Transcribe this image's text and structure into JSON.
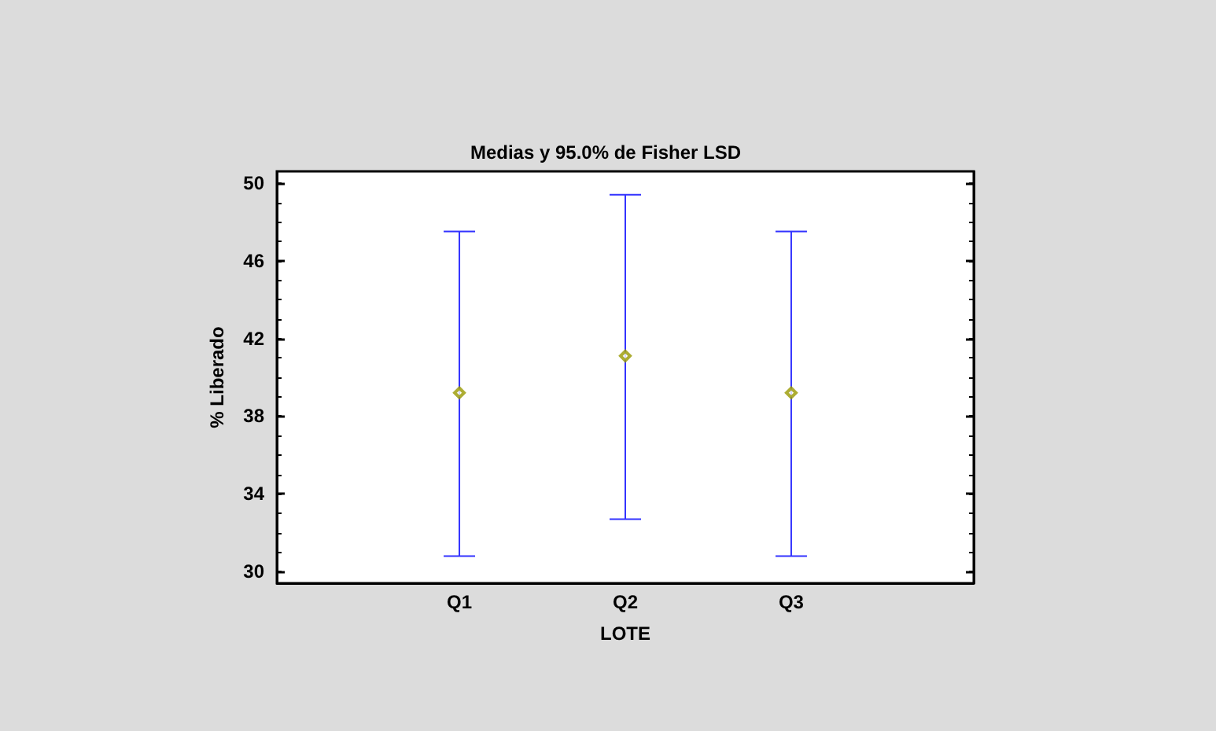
{
  "chart_data": {
    "type": "scatter",
    "title": "Medias y 95.0% de Fisher LSD",
    "xlabel": "LOTE",
    "ylabel": "% Liberado",
    "categories": [
      "Q1",
      "Q2",
      "Q3"
    ],
    "series": [
      {
        "color": "#999900",
        "values": [
          39.2,
          41.1,
          39.2
        ],
        "errors": [
          [
            30.8,
            47.5
          ],
          [
            32.7,
            49.4
          ],
          [
            30.8,
            47.5
          ]
        ]
      }
    ],
    "marker": "diamond",
    "ylim": [
      29.4,
      50.6
    ],
    "yticks": [
      30,
      34,
      38,
      42,
      46,
      50
    ],
    "grid": false
  }
}
